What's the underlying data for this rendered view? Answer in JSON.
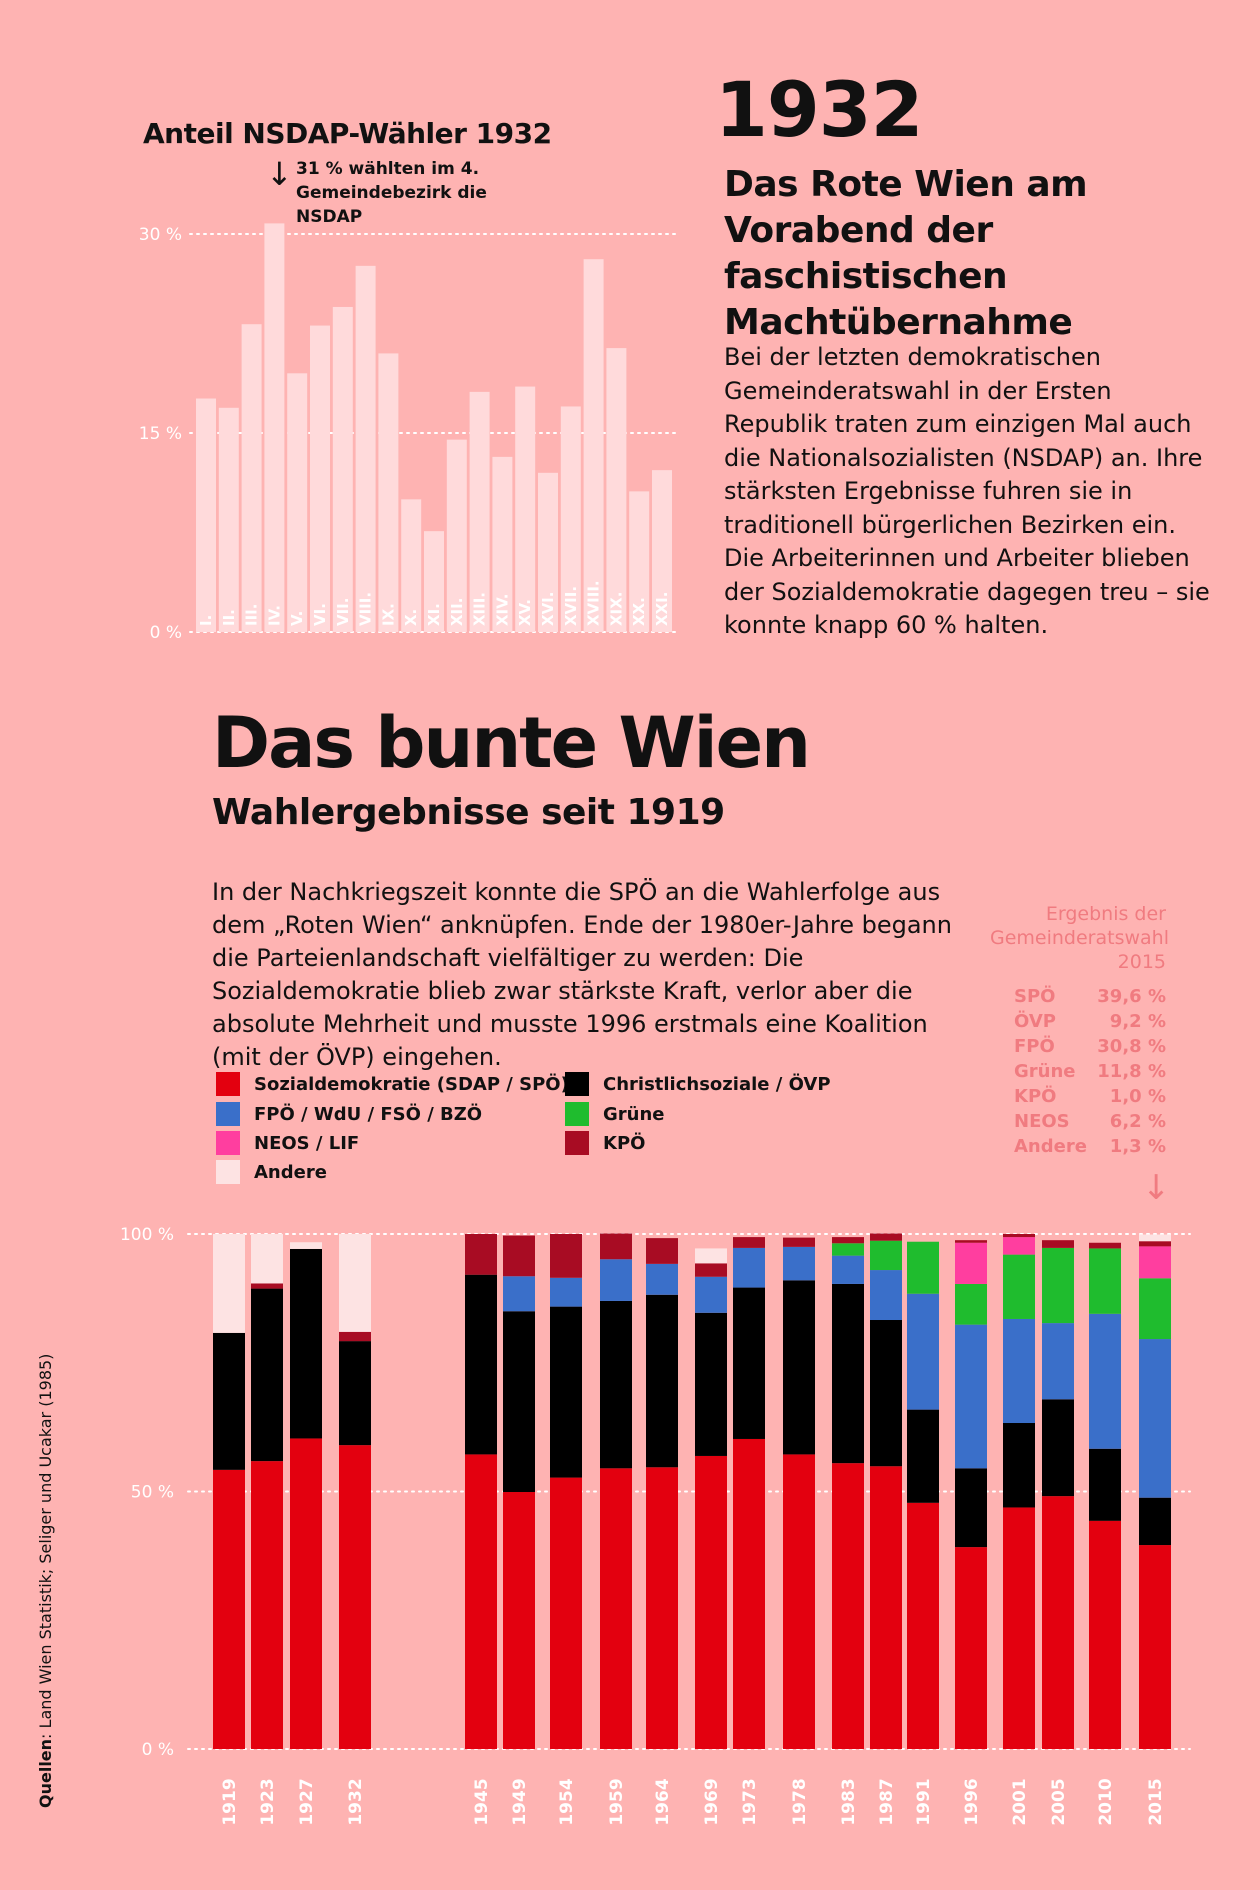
{
  "top_section": {
    "year": "1932",
    "headline": "Das Rote Wien am Vorabend der faschistischen Machtübernahme",
    "body": "Bei der letzten demokratischen Gemeinderatswahl in der Ersten Republik traten zum einzigen Mal auch die Nationalsozialisten (NSDAP) an. Ihre stärksten Ergebnisse fuhren sie in traditionell bürgerlichen Bezirken ein. Die Arbeiterinnen und Arbeiter blieben der Sozialdemokratie dagegen treu – sie konnte knapp 60 % halten."
  },
  "main_section": {
    "title": "Das bunte Wien",
    "subtitle": "Wahlergebnisse seit 1919",
    "body": "In der Nachkriegszeit konnte die SPÖ an die Wahlerfolge aus dem „Roten Wien“ anknüpfen. Ende der 1980er-Jahre begann die Parteienlandschaft vielfältiger zu werden: Die Sozialdemokratie blieb zwar stärkste Kraft, verlor aber die absolute Mehrheit und musste 1996 erstmals eine Koalition (mit der ÖVP) eingehen."
  },
  "result_2015": {
    "title": "Ergebnis der Gemeinderatswahl 2015",
    "rows": [
      {
        "party": "SPÖ",
        "value": "39,6 %"
      },
      {
        "party": "ÖVP",
        "value": "9,2 %"
      },
      {
        "party": "FPÖ",
        "value": "30,8 %"
      },
      {
        "party": "Grüne",
        "value": "11,8 %"
      },
      {
        "party": "KPÖ",
        "value": "1,0 %"
      },
      {
        "party": "NEOS",
        "value": "6,2 %"
      },
      {
        "party": "Andere",
        "value": "1,3 %"
      }
    ],
    "arrow": "↓"
  },
  "legend": [
    {
      "label": "Sozialdemokratie (SDAP / SPÖ)",
      "color": "#e3000f"
    },
    {
      "label": "Christlichsoziale / ÖVP",
      "color": "#000000"
    },
    {
      "label": "FPÖ / WdU / FSÖ / BZÖ",
      "color": "#3a6fc9"
    },
    {
      "label": "Grüne",
      "color": "#1fbc2e"
    },
    {
      "label": "NEOS / LIF",
      "color": "#ff3e9f"
    },
    {
      "label": "KPÖ",
      "color": "#a80c23"
    },
    {
      "label": "Andere",
      "color": "#fde3e3"
    }
  ],
  "sources": {
    "label": "Quellen",
    "text": "Land Wien Statistik; Seliger und Ucakar (1985)"
  },
  "chart_data": [
    {
      "type": "bar",
      "title": "Anteil NSDAP-Wähler 1932",
      "annotation": "31 % wählten im 4. Gemeindebezirk die NSDAP",
      "annotation_arrow": "↓",
      "categories": [
        "I.",
        "II.",
        "III.",
        "IV.",
        "V.",
        "VI.",
        "VII.",
        "VIII.",
        "IX.",
        "X.",
        "XI.",
        "XII.",
        "XIII.",
        "XIV.",
        "XV.",
        "XVI.",
        "XVII.",
        "XVIII.",
        "XIX.",
        "XX.",
        "XXI."
      ],
      "values": [
        17.6,
        16.9,
        23.2,
        30.8,
        19.5,
        23.1,
        24.5,
        27.6,
        21.0,
        10.0,
        7.6,
        14.5,
        18.1,
        13.2,
        18.5,
        12.0,
        17.0,
        28.1,
        21.4,
        10.6,
        12.2
      ],
      "ylim": [
        0,
        30
      ],
      "yticks": [
        {
          "value": 0,
          "label": "0 %"
        },
        {
          "value": 15,
          "label": "15 %"
        },
        {
          "value": 30,
          "label": "30 %"
        }
      ],
      "bar_color": "#ffdadb",
      "grid": true
    },
    {
      "type": "bar",
      "stacked": true,
      "title": "Wahlergebnisse seit 1919",
      "categories": [
        "1919",
        "1923",
        "1927",
        "1932",
        "1945",
        "1949",
        "1954",
        "1959",
        "1964",
        "1969",
        "1973",
        "1978",
        "1983",
        "1987",
        "1991",
        "1996",
        "2001",
        "2005",
        "2010",
        "2015"
      ],
      "ylim": [
        0,
        100
      ],
      "yticks": [
        {
          "value": 0,
          "label": "0 %"
        },
        {
          "value": 50,
          "label": "50 %"
        },
        {
          "value": 100,
          "label": "100 %"
        }
      ],
      "grid": true,
      "series": [
        {
          "name": "Sozialdemokratie (SDAP / SPÖ)",
          "color": "#e3000f",
          "values": [
            54.2,
            55.9,
            60.3,
            59.0,
            57.2,
            49.9,
            52.7,
            54.5,
            54.7,
            56.9,
            60.2,
            57.2,
            55.5,
            54.9,
            47.8,
            39.2,
            46.9,
            49.1,
            44.3,
            39.6
          ]
        },
        {
          "name": "Christlichsoziale / ÖVP",
          "color": "#000000",
          "values": [
            26.6,
            33.5,
            36.8,
            20.2,
            34.9,
            35.1,
            33.2,
            32.5,
            33.5,
            27.8,
            29.4,
            33.8,
            34.8,
            28.4,
            18.1,
            15.3,
            16.4,
            18.8,
            14.0,
            9.2
          ]
        },
        {
          "name": "FPÖ / WdU / FSÖ / BZÖ",
          "color": "#3a6fc9",
          "values": [
            0,
            0,
            0,
            0,
            0,
            6.8,
            5.6,
            8.1,
            6.0,
            7.0,
            7.7,
            6.5,
            5.5,
            9.7,
            22.5,
            27.9,
            20.2,
            14.8,
            26.2,
            30.8
          ]
        },
        {
          "name": "Grüne",
          "color": "#1fbc2e",
          "values": [
            0,
            0,
            0,
            0,
            0,
            0,
            0,
            0,
            0,
            0,
            0,
            0,
            2.4,
            5.7,
            10.1,
            7.9,
            12.5,
            14.6,
            12.7,
            11.8
          ]
        },
        {
          "name": "NEOS / LIF",
          "color": "#ff3e9f",
          "values": [
            0,
            0,
            0,
            0,
            0,
            0,
            0,
            0,
            0,
            0,
            0,
            0,
            0,
            0,
            0,
            8.0,
            3.4,
            0,
            0,
            6.2
          ]
        },
        {
          "name": "KPÖ",
          "color": "#a80c23",
          "values": [
            0,
            1.0,
            0,
            1.8,
            7.9,
            7.9,
            8.5,
            5.0,
            5.0,
            2.6,
            2.1,
            1.8,
            1.2,
            1.4,
            0,
            0.5,
            0.6,
            1.5,
            1.1,
            1.0
          ]
        },
        {
          "name": "Andere",
          "color": "#fde3e3",
          "values": [
            19.2,
            9.6,
            1.3,
            19.0,
            0,
            0,
            0,
            0,
            0,
            2.9,
            0,
            0,
            0,
            0,
            0,
            0,
            0,
            0,
            0,
            1.3
          ]
        }
      ]
    }
  ]
}
